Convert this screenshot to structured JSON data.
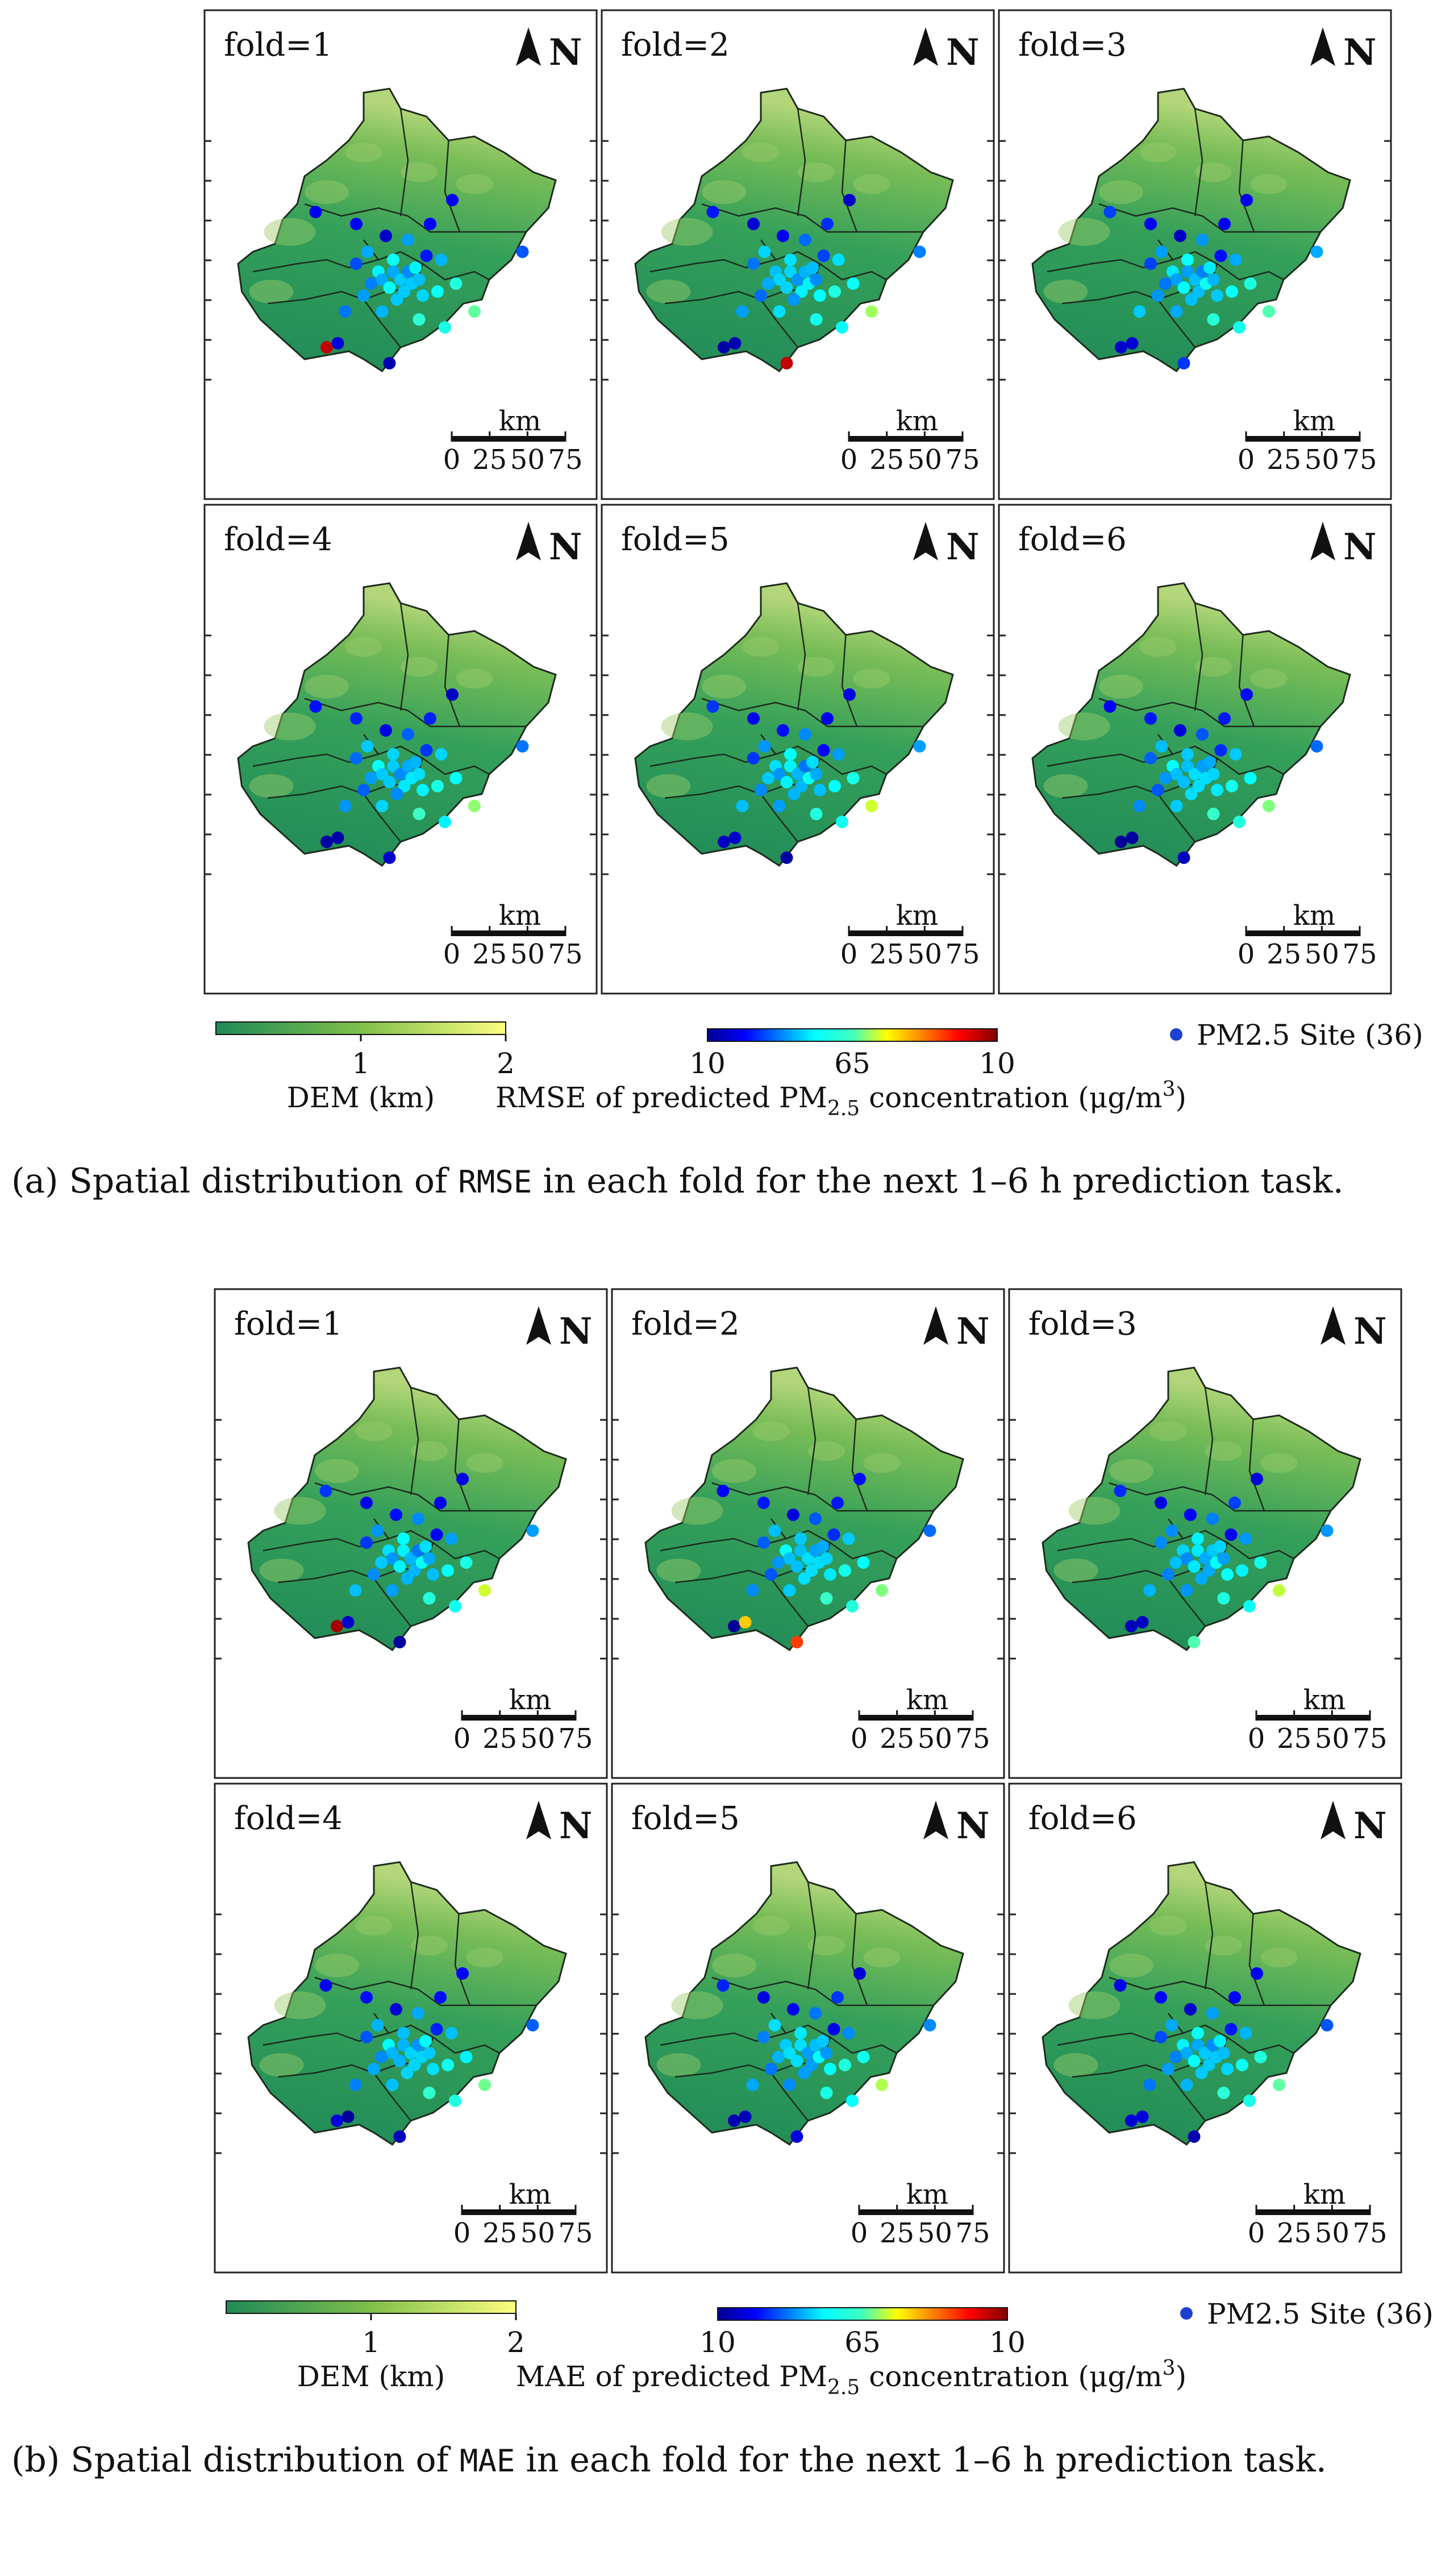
{
  "sections": [
    {
      "id": "a",
      "caption_prefix": "(a) Spatial distribution of",
      "caption_metric": "RMSE",
      "caption_suffix": "in each fold for the next 1–6 h prediction task.",
      "colorbar_title_prefix": "RMSE of predicted PM",
      "colorbar_title_sub": "2.5",
      "colorbar_title_suffix": " concentration (μg/m",
      "colorbar_title_sup": "3",
      "colorbar_title_close": ")",
      "colorbar_ticks": [
        "10",
        "65",
        "10"
      ],
      "panels": [
        {
          "label": "fold=1",
          "hot": [
            0.9,
            0.05,
            0.05
          ]
        },
        {
          "label": "fold=2",
          "hot": [
            0.05,
            0.9,
            0.05
          ]
        },
        {
          "label": "fold=3",
          "hot": [
            0.05,
            0.2,
            0.05
          ]
        },
        {
          "label": "fold=4",
          "hot": [
            0.05,
            0.05,
            0.05
          ]
        },
        {
          "label": "fold=5",
          "hot": [
            0.05,
            0.05,
            0.05
          ]
        },
        {
          "label": "fold=6",
          "hot": [
            0.05,
            0.05,
            0.05
          ]
        }
      ]
    },
    {
      "id": "b",
      "caption_prefix": "(b) Spatial distribution of",
      "caption_metric": "MAE",
      "caption_suffix": "in each fold for the next 1–6 h prediction task.",
      "colorbar_title_prefix": "MAE of predicted PM",
      "colorbar_title_sub": "2.5",
      "colorbar_title_suffix": " concentration (μg/m",
      "colorbar_title_sup": "3",
      "colorbar_title_close": ")",
      "colorbar_ticks": [
        "10",
        "65",
        "10"
      ],
      "panels": [
        {
          "label": "fold=1",
          "hot": [
            0.95,
            0.05,
            0.05
          ]
        },
        {
          "label": "fold=2",
          "hot": [
            0.05,
            0.8,
            0.7
          ]
        },
        {
          "label": "fold=3",
          "hot": [
            0.05,
            0.55,
            0.05
          ]
        },
        {
          "label": "fold=4",
          "hot": [
            0.05,
            0.05,
            0.05
          ]
        },
        {
          "label": "fold=5",
          "hot": [
            0.05,
            0.05,
            0.05
          ]
        },
        {
          "label": "fold=6",
          "hot": [
            0.05,
            0.05,
            0.05
          ]
        }
      ]
    }
  ],
  "north_label": "N",
  "scale_bar": {
    "unit": "km",
    "ticks": [
      "0",
      "25",
      "50",
      "75"
    ]
  },
  "dem_legend": {
    "title": "DEM (km)",
    "ticks": [
      "1",
      "2"
    ]
  },
  "site_legend": {
    "label": "PM2.5 Site (36)"
  },
  "colors": {
    "dem_low": "#1f8a57",
    "dem_mid": "#7fbf4a",
    "dem_high": "#fdfd80",
    "site_default": "#1e40d0",
    "frame": "#222222"
  }
}
